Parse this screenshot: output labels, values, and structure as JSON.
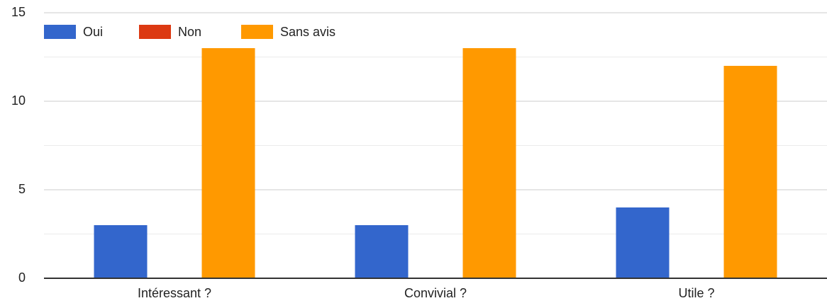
{
  "chart_data": {
    "type": "bar",
    "categories": [
      "Intéressant ?",
      "Convivial ?",
      "Utile ?"
    ],
    "series": [
      {
        "name": "Oui",
        "color": "#3366cc",
        "values": [
          3,
          3,
          4
        ]
      },
      {
        "name": "Non",
        "color": "#dc3912",
        "values": [
          0,
          0,
          0
        ]
      },
      {
        "name": "Sans avis",
        "color": "#ff9900",
        "values": [
          13,
          13,
          12
        ]
      }
    ],
    "ylim": [
      0,
      15
    ],
    "yticks": [
      0,
      5,
      10,
      15
    ],
    "yminorticks": [
      2.5,
      7.5,
      12.5
    ],
    "grid": true,
    "legend": "top-left"
  }
}
